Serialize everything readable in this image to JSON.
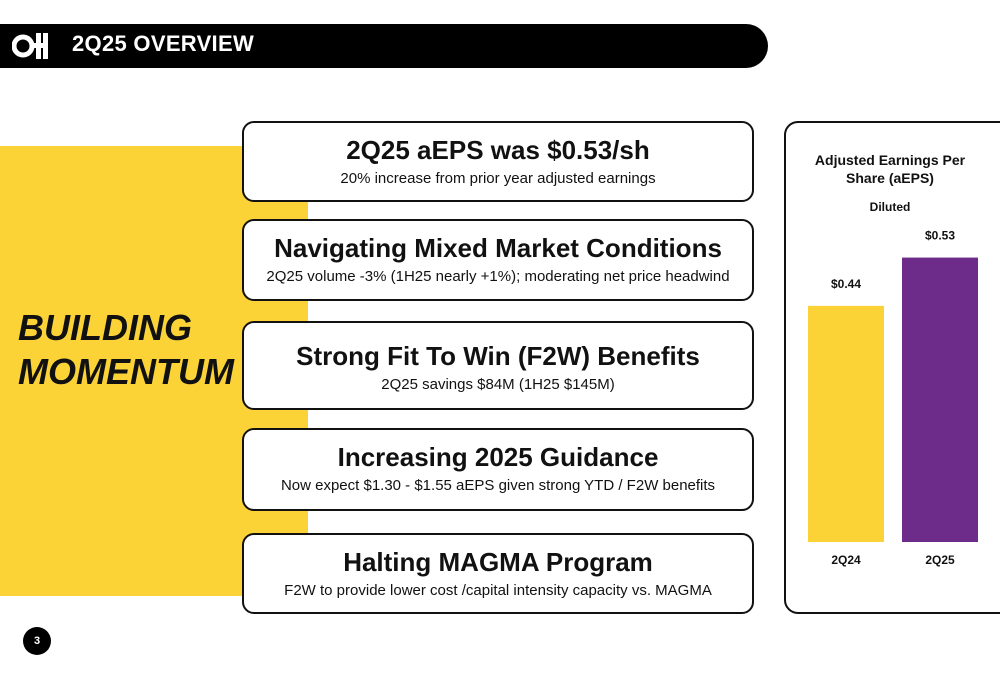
{
  "header": {
    "title": "2Q25 OVERVIEW"
  },
  "tagline": {
    "line1": "BUILDING",
    "line2": "MOMENTUM"
  },
  "highlights": [
    {
      "title": "2Q25 aEPS was $0.53/sh",
      "subtitle": "20% increase from prior year adjusted earnings"
    },
    {
      "title": "Navigating Mixed Market Conditions",
      "subtitle": "2Q25 volume -3% (1H25 nearly +1%); moderating net price headwind"
    },
    {
      "title": "Strong Fit To Win (F2W) Benefits",
      "subtitle": "2Q25 savings $84M (1H25 $145M)"
    },
    {
      "title": "Increasing 2025 Guidance",
      "subtitle": "Now expect $1.30 - $1.55 aEPS given strong YTD / F2W benefits"
    },
    {
      "title": "Halting MAGMA Program",
      "subtitle": "F2W to provide lower cost /capital intensity capacity vs. MAGMA"
    }
  ],
  "chart_data": {
    "type": "bar",
    "title": "Adjusted Earnings Per Share (aEPS)",
    "subtitle": "Diluted",
    "categories": [
      "2Q24",
      "2Q25"
    ],
    "values": [
      0.44,
      0.53
    ],
    "data_labels": [
      "$0.44",
      "$0.53"
    ],
    "colors": [
      "#FBD337",
      "#6E2C8A"
    ],
    "ylim": [
      0,
      0.6
    ],
    "grid": false
  },
  "colors": {
    "accent_yellow": "#FBD337",
    "accent_purple": "#6E2C8A",
    "header_bg": "#000000"
  },
  "page_number": "3"
}
